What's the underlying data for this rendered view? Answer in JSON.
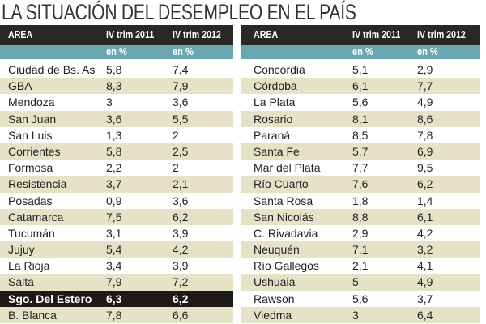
{
  "title": "LA SITUACIÓN DEL DESEMPLEO EN EL PAÍS",
  "colors": {
    "header": "#2b2724",
    "subheader": "#6ba7b0",
    "alt_row": "#e5e2c7",
    "highlight": "#1c1a19"
  },
  "columns": [
    "AREA",
    "IV trim 2011",
    "IV trim 2012"
  ],
  "unit_row": [
    "",
    "en %",
    "en %"
  ],
  "left_rows": [
    [
      "Ciudad de Bs. As",
      "5,8",
      "7,4"
    ],
    [
      "GBA",
      "8,3",
      "7,9"
    ],
    [
      "Mendoza",
      "3",
      "3,6"
    ],
    [
      "San Juan",
      "3,6",
      "5,5"
    ],
    [
      "San Luis",
      "1,3",
      "2"
    ],
    [
      "Corrientes",
      "5,8",
      "2,5"
    ],
    [
      "Formosa",
      "2,2",
      "2"
    ],
    [
      "Resistencia",
      "3,7",
      "2,1"
    ],
    [
      "Posadas",
      "0,9",
      "3,6"
    ],
    [
      "Catamarca",
      "7,5",
      "6,2"
    ],
    [
      "Tucumán",
      "3,1",
      "3,9"
    ],
    [
      "Jujuy",
      "5,4",
      "4,2"
    ],
    [
      "La Rioja",
      "3,4",
      "3,9"
    ],
    [
      "Salta",
      "7,9",
      "7,2"
    ],
    [
      "Sgo. Del Estero",
      "6,3",
      "6,2"
    ],
    [
      "B. Blanca",
      "7,8",
      "6,6"
    ]
  ],
  "right_rows": [
    [
      "Concordia",
      "5,1",
      "2,9"
    ],
    [
      "Córdoba",
      "6,1",
      "7,7"
    ],
    [
      "La Plata",
      "5,6",
      "4,9"
    ],
    [
      "Rosario",
      "8,1",
      "8,6"
    ],
    [
      "Paraná",
      "8,5",
      "7,8"
    ],
    [
      "Santa Fe",
      "5,7",
      "6,9"
    ],
    [
      "Mar del Plata",
      "7,7",
      "9,5"
    ],
    [
      "Río Cuarto",
      "7,6",
      "6,2"
    ],
    [
      "Santa Rosa",
      "1,8",
      "1,4"
    ],
    [
      "San Nicolás",
      "8,8",
      "6,1"
    ],
    [
      "C. Rivadavia",
      "2,9",
      "4,2"
    ],
    [
      "Neuquén",
      "7,1",
      "3,2"
    ],
    [
      "Río Gallegos",
      "2,1",
      "4,1"
    ],
    [
      "Ushuaia",
      "5",
      "4,9"
    ],
    [
      "Rawson",
      "5,6",
      "3,7"
    ],
    [
      "Viedma",
      "3",
      "6,4"
    ]
  ],
  "highlighted_left_row": "Sgo. Del Estero"
}
